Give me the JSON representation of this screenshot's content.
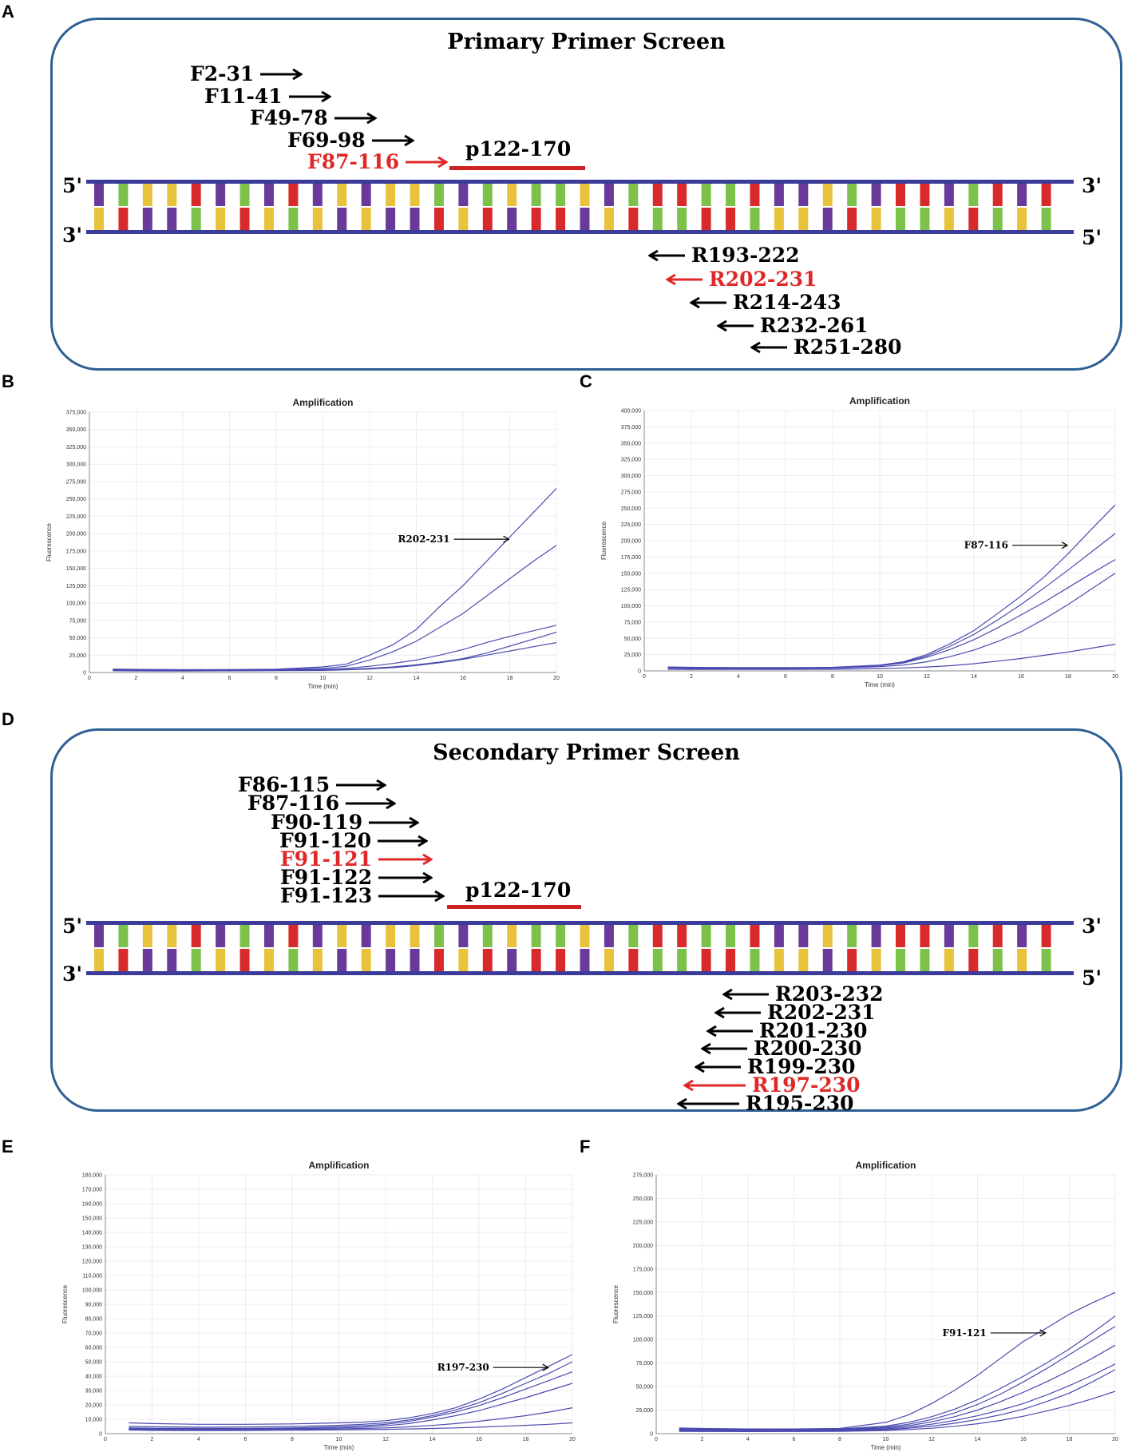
{
  "panels": {
    "A": "A",
    "B": "B",
    "C": "C",
    "D": "D",
    "E": "E",
    "F": "F"
  },
  "colors": {
    "box_border": "#2f5f93",
    "strand": "#3b3b9a",
    "highlight": "#e02828",
    "line": "#4b4bb0",
    "bases": [
      "#6a3a9a",
      "#e8c23a",
      "#7cc24a",
      "#d82a2a"
    ]
  },
  "primary": {
    "title": "Primary Primer Screen",
    "probe": "p122-170",
    "end_5_top": "5'",
    "end_3_top": "3'",
    "end_3_bottom": "3'",
    "end_5_bottom": "5'",
    "forward": [
      {
        "label": "F2-31",
        "hl": false
      },
      {
        "label": "F11-41",
        "hl": false
      },
      {
        "label": "F49-78",
        "hl": false
      },
      {
        "label": "F69-98",
        "hl": false
      },
      {
        "label": "F87-116",
        "hl": true
      }
    ],
    "reverse": [
      {
        "label": "R193-222",
        "hl": false
      },
      {
        "label": "R202-231",
        "hl": true
      },
      {
        "label": "R214-243",
        "hl": false
      },
      {
        "label": "R232-261",
        "hl": false
      },
      {
        "label": "R251-280",
        "hl": false
      }
    ]
  },
  "secondary": {
    "title": "Secondary Primer Screen",
    "probe": "p122-170",
    "end_5_top": "5'",
    "end_3_top": "3'",
    "end_3_bottom": "3'",
    "end_5_bottom": "5'",
    "forward": [
      {
        "label": "F86-115",
        "hl": false
      },
      {
        "label": "F87-116",
        "hl": false
      },
      {
        "label": "F90-119",
        "hl": false
      },
      {
        "label": "F91-120",
        "hl": false
      },
      {
        "label": "F91-121",
        "hl": true
      },
      {
        "label": "F91-122",
        "hl": false
      },
      {
        "label": "F91-123",
        "hl": false
      }
    ],
    "reverse": [
      {
        "label": "R203-232",
        "hl": false
      },
      {
        "label": "R202-231",
        "hl": false
      },
      {
        "label": "R201-230",
        "hl": false
      },
      {
        "label": "R200-230",
        "hl": false
      },
      {
        "label": "R199-230",
        "hl": false
      },
      {
        "label": "R197-230",
        "hl": true
      },
      {
        "label": "R195-230",
        "hl": false
      }
    ]
  },
  "chart_data": [
    {
      "id": "B",
      "type": "line",
      "title": "Amplification",
      "xlabel": "Time (min)",
      "ylabel": "Fluorescence",
      "xlim": [
        0,
        20
      ],
      "ylim": [
        0,
        375000
      ],
      "xticks": [
        0,
        2,
        4,
        6,
        8,
        10,
        12,
        14,
        16,
        18,
        20
      ],
      "yticks": [
        0,
        25000,
        50000,
        75000,
        100000,
        125000,
        150000,
        175000,
        200000,
        225000,
        250000,
        275000,
        300000,
        325000,
        350000,
        375000
      ],
      "ytick_labels": [
        "0",
        "25,000",
        "50,000",
        "75,000",
        "100,000",
        "125,000",
        "150,000",
        "175,000",
        "200,000",
        "225,000",
        "250,000",
        "275,000",
        "300,000",
        "325,000",
        "350,000",
        "375,000"
      ],
      "annotation": {
        "label": "R202-231",
        "x": 18,
        "y": 192000
      },
      "x": [
        1,
        2,
        4,
        6,
        8,
        10,
        11,
        12,
        13,
        14,
        15,
        16,
        17,
        18,
        19,
        20
      ],
      "series": [
        {
          "values": [
            5000,
            4500,
            4000,
            4200,
            4800,
            8000,
            12000,
            25000,
            40000,
            62000,
            95000,
            125000,
            160000,
            195000,
            230000,
            265000
          ]
        },
        {
          "values": [
            4000,
            3800,
            3500,
            3800,
            4200,
            6000,
            9000,
            18000,
            30000,
            45000,
            65000,
            85000,
            110000,
            135000,
            160000,
            183000
          ]
        },
        {
          "values": [
            3500,
            3200,
            3000,
            3200,
            3500,
            4500,
            6000,
            9000,
            13000,
            18000,
            25000,
            33000,
            43000,
            52000,
            60000,
            68000
          ]
        },
        {
          "values": [
            3000,
            2800,
            2500,
            2800,
            3000,
            3500,
            4500,
            6000,
            8000,
            11000,
            15000,
            20000,
            28000,
            38000,
            48000,
            58000
          ]
        },
        {
          "values": [
            2500,
            2300,
            2200,
            2400,
            2600,
            3000,
            3800,
            5000,
            7000,
            10000,
            14000,
            19000,
            25000,
            31000,
            37000,
            43000
          ]
        }
      ]
    },
    {
      "id": "C",
      "type": "line",
      "title": "Amplification",
      "xlabel": "Time (min)",
      "ylabel": "Fluorescence",
      "xlim": [
        0,
        20
      ],
      "ylim": [
        0,
        400000
      ],
      "xticks": [
        0,
        2,
        4,
        6,
        8,
        10,
        12,
        14,
        16,
        18,
        20
      ],
      "yticks": [
        0,
        25000,
        50000,
        75000,
        100000,
        125000,
        150000,
        175000,
        200000,
        225000,
        250000,
        275000,
        300000,
        325000,
        350000,
        375000,
        400000
      ],
      "ytick_labels": [
        "0",
        "25,000",
        "50,000",
        "75,000",
        "100,000",
        "125,000",
        "150,000",
        "175,000",
        "200,000",
        "225,000",
        "250,000",
        "275,000",
        "300,000",
        "325,000",
        "350,000",
        "375,000",
        "400,000"
      ],
      "annotation": {
        "label": "F87-116",
        "x": 18,
        "y": 193000
      },
      "x": [
        1,
        2,
        4,
        6,
        8,
        10,
        11,
        12,
        13,
        14,
        15,
        16,
        17,
        18,
        19,
        20
      ],
      "series": [
        {
          "values": [
            6000,
            5500,
            5000,
            5000,
            5500,
            9000,
            14000,
            25000,
            42000,
            62000,
            88000,
            115000,
            145000,
            180000,
            218000,
            255000
          ]
        },
        {
          "values": [
            5000,
            4500,
            4200,
            4300,
            4800,
            8500,
            13000,
            23000,
            38000,
            56000,
            78000,
            102000,
            128000,
            155000,
            183000,
            211000
          ]
        },
        {
          "values": [
            4500,
            4200,
            4000,
            4100,
            4500,
            8000,
            12000,
            21000,
            33000,
            48000,
            66000,
            86000,
            106000,
            128000,
            150000,
            171000
          ]
        },
        {
          "values": [
            4000,
            3800,
            3600,
            3700,
            4000,
            6500,
            9000,
            14000,
            22000,
            32000,
            45000,
            60000,
            80000,
            102000,
            126000,
            150000
          ]
        },
        {
          "values": [
            2500,
            2300,
            2200,
            2300,
            2500,
            3500,
            4500,
            6000,
            8000,
            11000,
            15000,
            19000,
            24000,
            29000,
            35000,
            41000
          ]
        }
      ]
    },
    {
      "id": "E",
      "type": "line",
      "title": "Amplification",
      "xlabel": "Time (min)",
      "ylabel": "Fluorescence",
      "xlim": [
        0,
        20
      ],
      "ylim": [
        0,
        180000
      ],
      "xticks": [
        0,
        2,
        4,
        6,
        8,
        10,
        12,
        14,
        16,
        18,
        20
      ],
      "yticks": [
        0,
        10000,
        20000,
        30000,
        40000,
        50000,
        60000,
        70000,
        80000,
        90000,
        100000,
        110000,
        120000,
        130000,
        140000,
        150000,
        160000,
        170000,
        180000
      ],
      "ytick_labels": [
        "0",
        "10,000",
        "20,000",
        "30,000",
        "40,000",
        "50,000",
        "60,000",
        "70,000",
        "80,000",
        "90,000",
        "100,000",
        "110,000",
        "120,000",
        "130,000",
        "140,000",
        "150,000",
        "160,000",
        "170,000",
        "180,000"
      ],
      "annotation": {
        "label": "R197-230",
        "x": 19,
        "y": 46000
      },
      "x": [
        1,
        2,
        4,
        6,
        8,
        10,
        11,
        12,
        13,
        14,
        15,
        16,
        17,
        18,
        19,
        20
      ],
      "series": [
        {
          "values": [
            7500,
            7000,
            6500,
            6500,
            6800,
            7500,
            8000,
            9000,
            11000,
            14000,
            18000,
            24000,
            31000,
            39000,
            47000,
            55000
          ]
        },
        {
          "values": [
            5000,
            4800,
            4500,
            4600,
            5000,
            5800,
            6500,
            7500,
            9500,
            12500,
            16500,
            21500,
            28000,
            35000,
            42000,
            50000
          ]
        },
        {
          "values": [
            4000,
            3800,
            3600,
            3700,
            4000,
            4800,
            5500,
            6500,
            8500,
            11500,
            15000,
            19500,
            25000,
            31000,
            37000,
            43000
          ]
        },
        {
          "values": [
            3500,
            3300,
            3100,
            3200,
            3500,
            4000,
            4500,
            5500,
            7000,
            9500,
            12500,
            16000,
            20500,
            25000,
            30000,
            35000
          ]
        },
        {
          "values": [
            3000,
            2800,
            2600,
            2700,
            3000,
            3300,
            3600,
            4000,
            4700,
            5700,
            7000,
            8600,
            10500,
            12500,
            15000,
            18000
          ]
        },
        {
          "values": [
            2500,
            2300,
            2100,
            2200,
            2400,
            2600,
            2800,
            3000,
            3300,
            3600,
            4000,
            4500,
            5100,
            5800,
            6500,
            7500
          ]
        }
      ]
    },
    {
      "id": "F",
      "type": "line",
      "title": "Amplification",
      "xlabel": "Time (min)",
      "ylabel": "Fluorescence",
      "xlim": [
        0,
        20
      ],
      "ylim": [
        0,
        275000
      ],
      "xticks": [
        0,
        2,
        4,
        6,
        8,
        10,
        12,
        14,
        16,
        18,
        20
      ],
      "yticks": [
        0,
        25000,
        50000,
        75000,
        100000,
        125000,
        150000,
        175000,
        200000,
        225000,
        250000,
        275000
      ],
      "ytick_labels": [
        "0",
        "25,000",
        "50,000",
        "75,000",
        "100,000",
        "125,000",
        "150,000",
        "175,000",
        "200,000",
        "225,000",
        "250,000",
        "275,000"
      ],
      "annotation": {
        "label": "F91-121",
        "x": 17,
        "y": 107000
      },
      "x": [
        1,
        2,
        4,
        6,
        8,
        10,
        11,
        12,
        13,
        14,
        15,
        16,
        17,
        18,
        19,
        20
      ],
      "series": [
        {
          "values": [
            6000,
            5500,
            5000,
            5000,
            5500,
            12000,
            20000,
            32000,
            46000,
            62000,
            80000,
            98000,
            112000,
            127000,
            139000,
            150000
          ]
        },
        {
          "values": [
            5000,
            4800,
            4500,
            4600,
            5000,
            8000,
            12000,
            18000,
            26000,
            36000,
            48000,
            61000,
            75000,
            90000,
            107000,
            125000
          ]
        },
        {
          "values": [
            4500,
            4300,
            4000,
            4100,
            4500,
            7000,
            10000,
            15000,
            22000,
            31000,
            42000,
            55000,
            69000,
            84000,
            99000,
            114000
          ]
        },
        {
          "values": [
            4000,
            3800,
            3600,
            3700,
            4000,
            6000,
            8500,
            12500,
            18000,
            25000,
            34000,
            44000,
            55000,
            67000,
            80000,
            94000
          ]
        },
        {
          "values": [
            3500,
            3300,
            3100,
            3200,
            3500,
            5000,
            7000,
            10000,
            14000,
            19000,
            25000,
            32000,
            41000,
            51000,
            62000,
            74000
          ]
        },
        {
          "values": [
            3000,
            2800,
            2700,
            2800,
            3000,
            4200,
            5800,
            8000,
            11000,
            15000,
            20000,
            26000,
            34000,
            43000,
            55000,
            68000
          ]
        },
        {
          "values": [
            2500,
            2300,
            2200,
            2300,
            2500,
            3300,
            4300,
            5800,
            7800,
            10500,
            14000,
            18500,
            24000,
            30000,
            37000,
            45000
          ]
        }
      ]
    }
  ]
}
